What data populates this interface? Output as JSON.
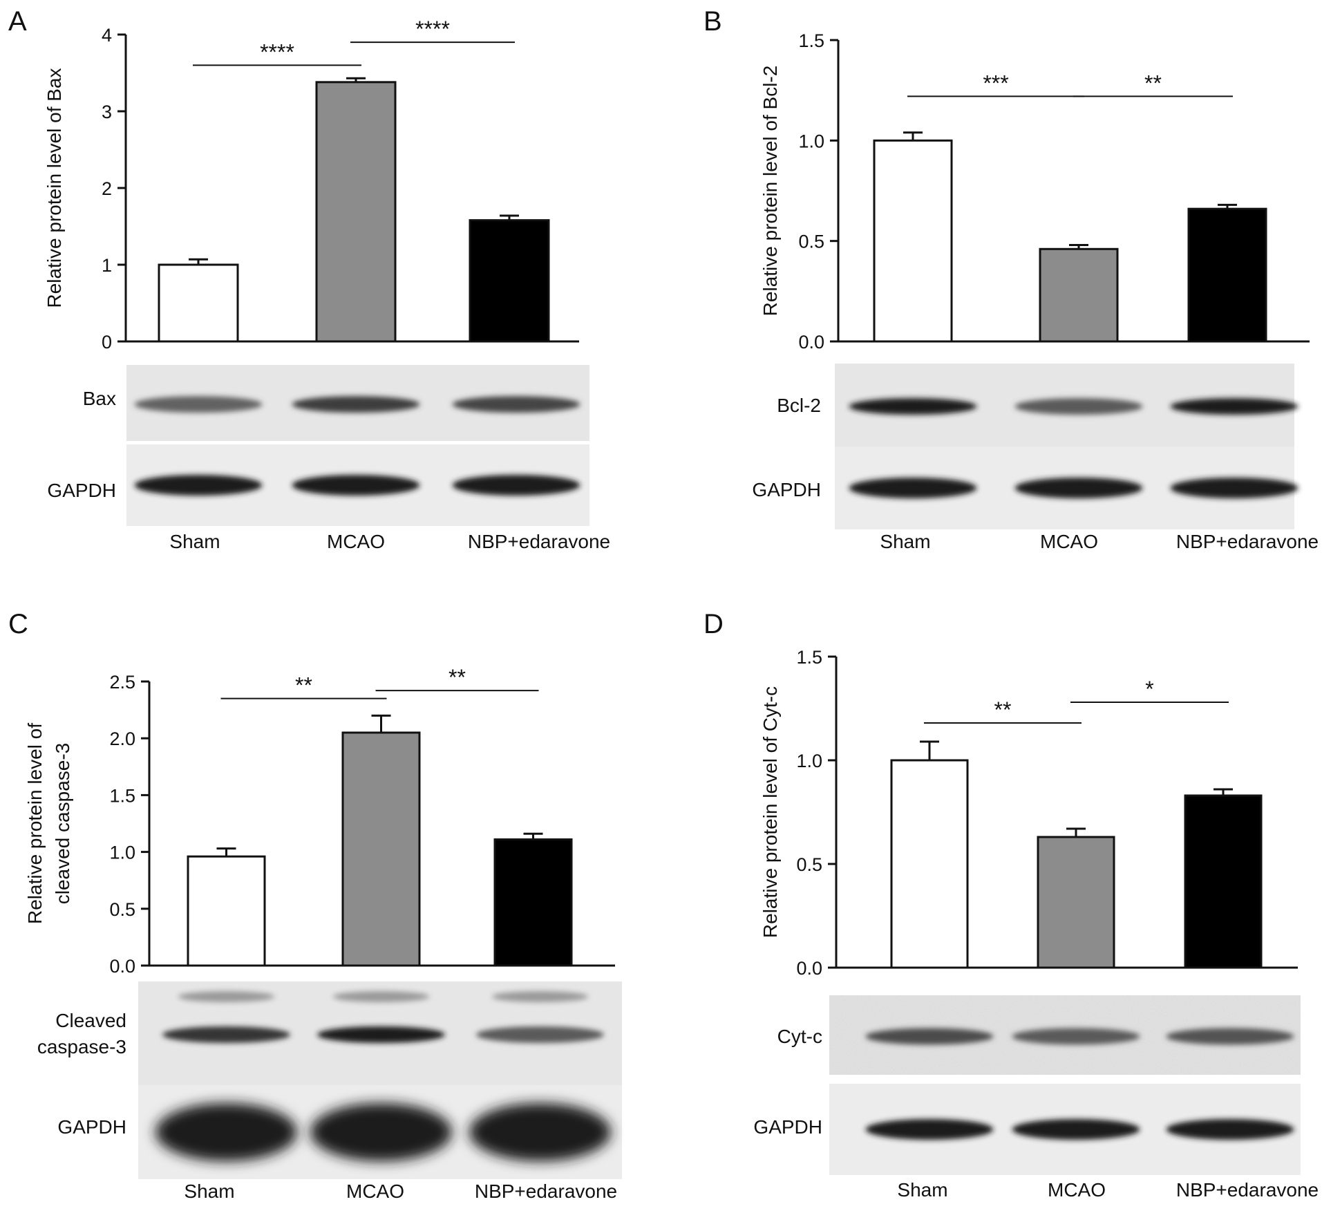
{
  "colors": {
    "sham": "#ffffff",
    "mcao": "#8c8c8c",
    "nbp": "#000000"
  },
  "chart_data": [
    {
      "panel": "A",
      "type": "bar",
      "categories": [
        "Sham",
        "MCAO",
        "NBP+edaravone"
      ],
      "values": [
        1.0,
        3.38,
        1.58
      ],
      "errors": [
        0.07,
        0.05,
        0.06
      ],
      "ylabel": "Relative protein level of Bax",
      "ylim": [
        0,
        4
      ],
      "yticks": [
        0,
        1,
        2,
        3,
        4
      ],
      "ytick_labels": [
        "0",
        "1",
        "2",
        "3",
        "4"
      ],
      "significance": [
        {
          "from": 0,
          "to": 1,
          "label": "****",
          "y": 3.6
        },
        {
          "from": 1,
          "to": 2,
          "label": "****",
          "y": 3.9
        }
      ],
      "blot": {
        "bands": [
          "Bax",
          "GAPDH"
        ]
      }
    },
    {
      "panel": "B",
      "type": "bar",
      "categories": [
        "Sham",
        "MCAO",
        "NBP+edaravone"
      ],
      "values": [
        1.0,
        0.46,
        0.66
      ],
      "errors": [
        0.04,
        0.02,
        0.02
      ],
      "ylabel": "Relative protein level of Bcl-2",
      "ylim": [
        0,
        1.5
      ],
      "yticks": [
        0,
        0.5,
        1.0,
        1.5
      ],
      "ytick_labels": [
        "0.0",
        "0.5",
        "1.0",
        "1.5"
      ],
      "significance": [
        {
          "from": 0,
          "to": 1,
          "label": "***",
          "y": 1.22
        },
        {
          "from": 1,
          "to": 2,
          "label": "**",
          "y": 1.22
        }
      ],
      "blot": {
        "bands": [
          "Bcl-2",
          "GAPDH"
        ]
      }
    },
    {
      "panel": "C",
      "type": "bar",
      "categories": [
        "Sham",
        "MCAO",
        "NBP+edaravone"
      ],
      "values": [
        0.96,
        2.05,
        1.11
      ],
      "errors": [
        0.07,
        0.15,
        0.05
      ],
      "ylabel": "Relative protein level of cleaved caspase-3",
      "ylabel_lines": [
        "Relative protein level of",
        "cleaved caspase-3"
      ],
      "ylim": [
        0,
        2.5
      ],
      "yticks": [
        0,
        0.5,
        1.0,
        1.5,
        2.0,
        2.5
      ],
      "ytick_labels": [
        "0.0",
        "0.5",
        "1.0",
        "1.5",
        "2.0",
        "2.5"
      ],
      "significance": [
        {
          "from": 0,
          "to": 1,
          "label": "**",
          "y": 2.35
        },
        {
          "from": 1,
          "to": 2,
          "label": "**",
          "y": 2.42
        }
      ],
      "blot": {
        "bands": [
          "Cleaved caspase-3",
          "GAPDH"
        ],
        "band_label_lines": [
          [
            "Cleaved",
            "caspase-3"
          ],
          [
            "GAPDH"
          ]
        ]
      }
    },
    {
      "panel": "D",
      "type": "bar",
      "categories": [
        "Sham",
        "MCAO",
        "NBP+edaravone"
      ],
      "values": [
        1.0,
        0.63,
        0.83
      ],
      "errors": [
        0.09,
        0.04,
        0.03
      ],
      "ylabel": "Relative protein level of Cyt-c",
      "ylim": [
        0,
        1.5
      ],
      "yticks": [
        0,
        0.5,
        1.0,
        1.5
      ],
      "ytick_labels": [
        "0.0",
        "0.5",
        "1.0",
        "1.5"
      ],
      "significance": [
        {
          "from": 0,
          "to": 1,
          "label": "**",
          "y": 1.18
        },
        {
          "from": 1,
          "to": 2,
          "label": "*",
          "y": 1.28
        }
      ],
      "blot": {
        "bands": [
          "Cyt-c",
          "GAPDH"
        ]
      }
    }
  ]
}
